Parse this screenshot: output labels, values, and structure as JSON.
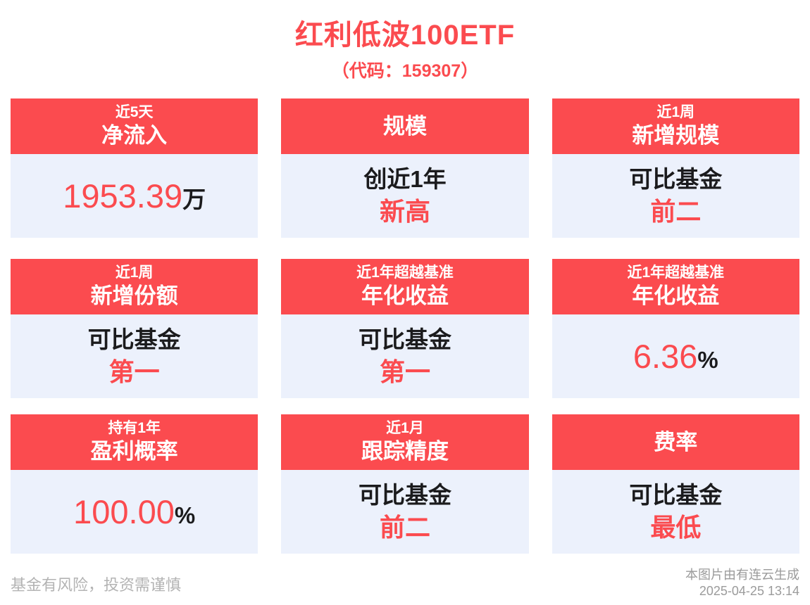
{
  "page": {
    "title": "红利低波100ETF",
    "subtitle": "（代码：159307）",
    "disclaimer": "基金有风险，投资需谨慎",
    "credit": "本图片由有连云生成",
    "timestamp": "2025-04-25 13:14"
  },
  "colors": {
    "accent_red": "#fb4b4f",
    "card_body_bg": "#ecf1fc",
    "text_dark": "#1b1b1d",
    "muted_gray": "#9b9b9b"
  },
  "cards": [
    {
      "period": "近5天",
      "metric": "净流入",
      "value": "1953.39",
      "suffix": "万"
    },
    {
      "period": "",
      "metric": "规模",
      "line1": "创近1年",
      "line2": "新高"
    },
    {
      "period": "近1周",
      "metric": "新增规模",
      "line1": "可比基金",
      "line2": "前二"
    },
    {
      "period": "近1周",
      "metric": "新增份额",
      "line1": "可比基金",
      "line2": "第一"
    },
    {
      "period": "近1年超越基准",
      "metric": "年化收益",
      "line1": "可比基金",
      "line2": "第一"
    },
    {
      "period": "近1年超越基准",
      "metric": "年化收益",
      "value": "6.36",
      "suffix": "%"
    },
    {
      "period": "持有1年",
      "metric": "盈利概率",
      "value": "100.00",
      "suffix": "%"
    },
    {
      "period": "近1月",
      "metric": "跟踪精度",
      "line1": "可比基金",
      "line2": "前二"
    },
    {
      "period": "",
      "metric": "费率",
      "line1": "可比基金",
      "line2": "最低"
    }
  ]
}
